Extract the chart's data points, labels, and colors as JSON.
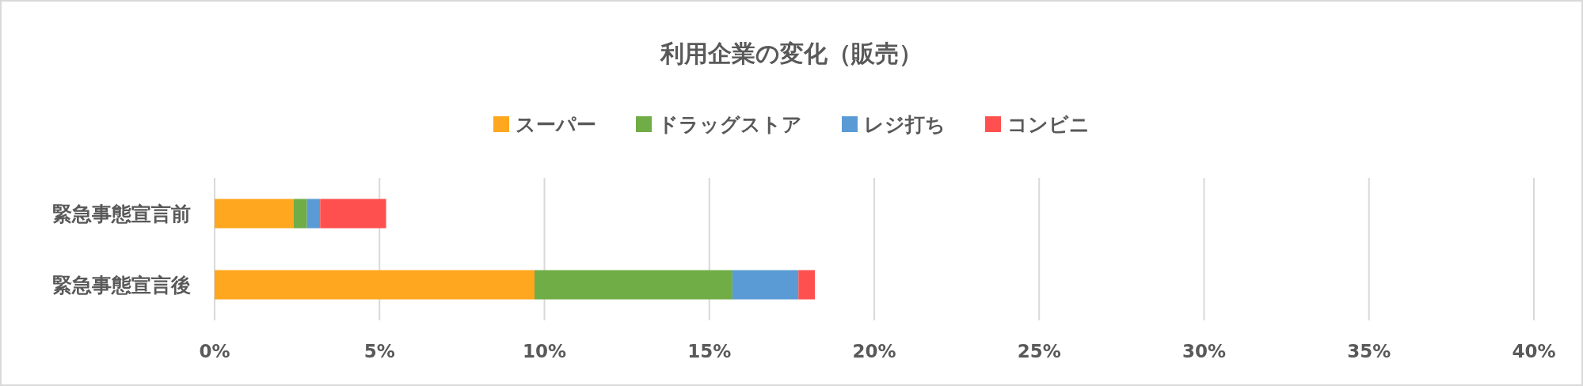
{
  "chart_data": {
    "type": "bar",
    "orientation": "horizontal",
    "stacked": true,
    "title": "利用企業の変化（販売）",
    "categories": [
      "緊急事態宣言前",
      "緊急事態宣言後"
    ],
    "series": [
      {
        "name": "スーパー",
        "color": "#ffa71f",
        "values": [
          2.4,
          9.7
        ]
      },
      {
        "name": "ドラッグストア",
        "color": "#70ad47",
        "values": [
          0.4,
          6.0
        ]
      },
      {
        "name": "レジ打ち",
        "color": "#5b9bd5",
        "values": [
          0.4,
          2.0
        ]
      },
      {
        "name": "コンビニ",
        "color": "#ff5050",
        "values": [
          2.0,
          0.5
        ]
      }
    ],
    "xlim": [
      0,
      40
    ],
    "xticks": [
      {
        "value": 0,
        "label": "0%"
      },
      {
        "value": 5,
        "label": "5%"
      },
      {
        "value": 10,
        "label": "10%"
      },
      {
        "value": 15,
        "label": "15%"
      },
      {
        "value": 20,
        "label": "20%"
      },
      {
        "value": 25,
        "label": "25%"
      },
      {
        "value": 30,
        "label": "30%"
      },
      {
        "value": 35,
        "label": "35%"
      },
      {
        "value": 40,
        "label": "40%"
      }
    ],
    "grid": "x",
    "legend": "top"
  }
}
